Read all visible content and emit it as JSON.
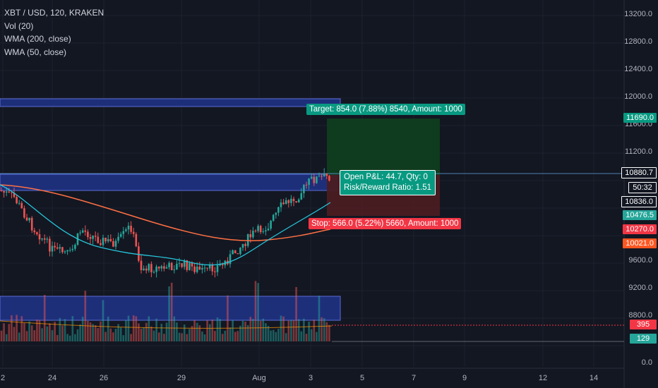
{
  "legend": {
    "symbol": "XBT / USD, 120, KRAKEN",
    "indicators": [
      "Vol (20)",
      "WMA (200, close)",
      "WMA (50, close)"
    ]
  },
  "y_axis": {
    "ticks": [
      "13200.0",
      "12800.0",
      "12400.0",
      "12000.0",
      "11600.0",
      "11200.0",
      "9600.0",
      "9200.0",
      "8800.0",
      "0.0"
    ]
  },
  "x_axis": {
    "ticks": [
      "2",
      "24",
      "26",
      "29",
      "Aug",
      "3",
      "5",
      "7",
      "9",
      "12",
      "14"
    ]
  },
  "price_labels": [
    {
      "id": "target",
      "text": "11690.0",
      "color": "#089981"
    },
    {
      "id": "last",
      "text": "10880.7",
      "color": "#131722"
    },
    {
      "id": "countdown",
      "text": "50:32",
      "color": "#131722"
    },
    {
      "id": "entry",
      "text": "10836.0",
      "color": "#131722"
    },
    {
      "id": "wma50",
      "text": "10476.5",
      "color": "#26a69a"
    },
    {
      "id": "stop",
      "text": "10270.0",
      "color": "#f23645"
    },
    {
      "id": "wma200",
      "text": "10021.0",
      "color": "#ff5722"
    },
    {
      "id": "vol_ma",
      "text": "395",
      "color": "#f23645"
    },
    {
      "id": "vol",
      "text": "129",
      "color": "#26a69a"
    }
  ],
  "position": {
    "target_text": "Target: 854.0 (7.88%) 8540, Amount: 1000",
    "stop_text": "Stop: 566.0 (5.22%) 5660, Amount: 1000",
    "pnl_text": "Open P&L: 44.7, Qty: 0",
    "rr_text": "Risk/Reward Ratio: 1.51"
  },
  "colors": {
    "up": "#26a69a",
    "down": "#ef5350",
    "wma50": "#26c6da",
    "wma200": "#ff7043",
    "zone": "#1e2f7a",
    "profit": "#0f3d1f",
    "loss": "#4a1c22"
  }
}
